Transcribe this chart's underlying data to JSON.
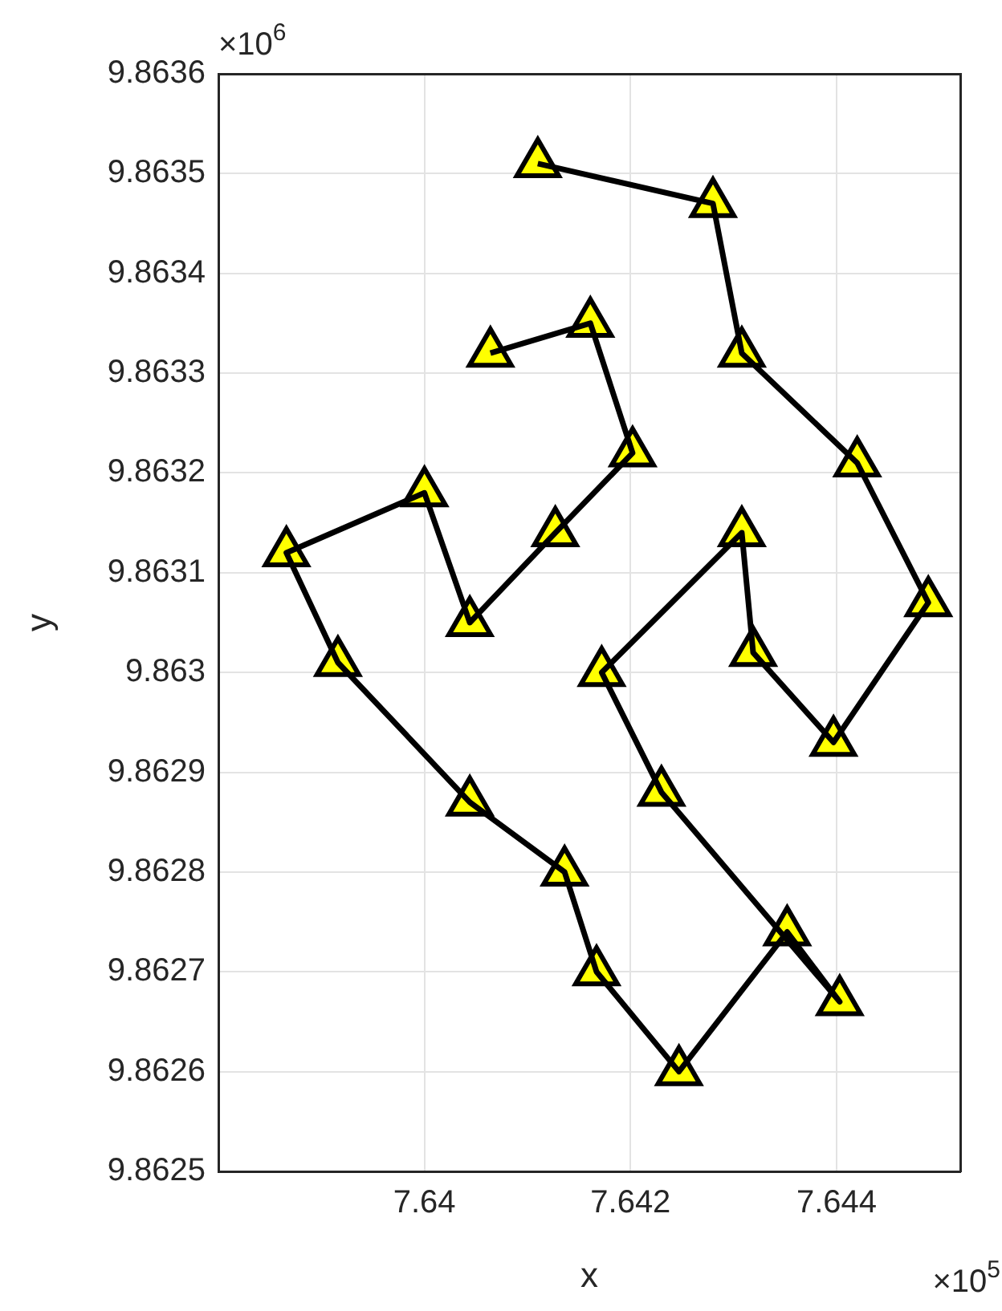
{
  "chart_data": {
    "type": "line",
    "xlabel": "x",
    "ylabel": "y",
    "x": [
      7.6411,
      7.6428,
      7.64308,
      7.6442,
      7.64489,
      7.64397,
      7.64319,
      7.64308,
      7.64172,
      7.6423,
      7.64403,
      7.64352,
      7.64247,
      7.64167,
      7.64136,
      7.64044,
      7.63916,
      7.63866,
      7.64,
      7.64044,
      7.64127,
      7.64202,
      7.64161,
      7.64064
    ],
    "series": [
      {
        "color": "#000000",
        "values": [
          9.86351,
          9.86347,
          9.86332,
          9.86321,
          9.86307,
          9.86293,
          9.86302,
          9.86314,
          9.863,
          9.86288,
          9.86267,
          9.86274,
          9.8626,
          9.8627,
          9.8628,
          9.86287,
          9.86301,
          9.86312,
          9.86318,
          9.86305,
          9.86314,
          9.86322,
          9.86335,
          9.86332
        ]
      }
    ],
    "marker": "triangle",
    "line_style": "solid",
    "grid": true,
    "legend": false,
    "xlim": [
      7.638,
      7.6452
    ],
    "xticks": [
      7.64,
      7.642,
      7.644
    ],
    "ylim": [
      9.8625,
      9.8636
    ],
    "yticks": [
      9.8625,
      9.8626,
      9.8627,
      9.8628,
      9.8629,
      9.863,
      9.8631,
      9.8632,
      9.8633,
      9.8634,
      9.8635,
      9.8636
    ],
    "annotations": [
      "×10$^{6}$",
      "×10$^{5}$"
    ]
  }
}
